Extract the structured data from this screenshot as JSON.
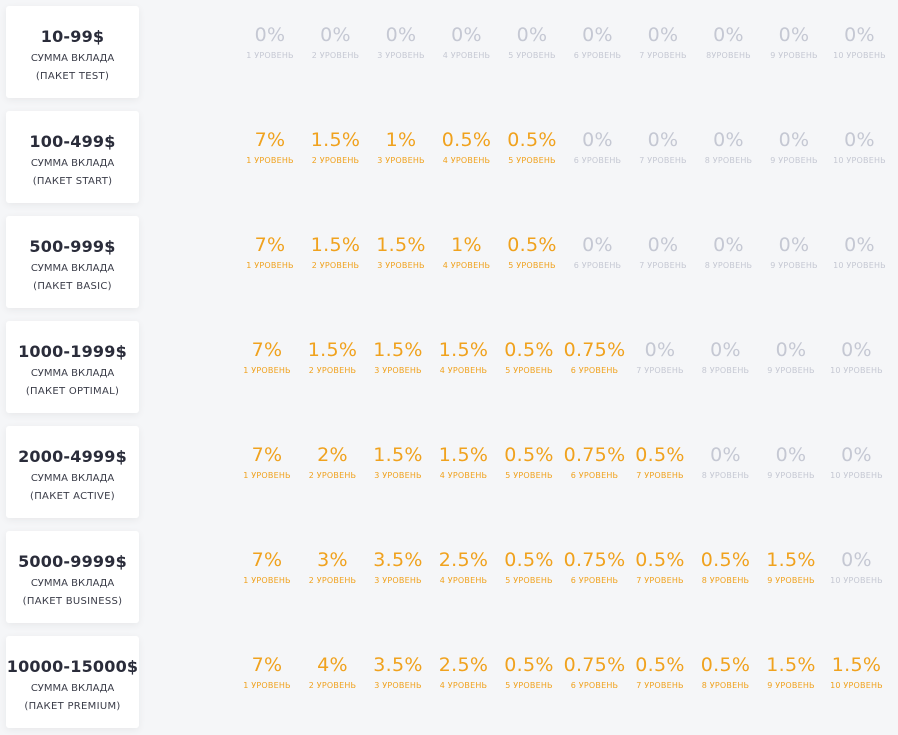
{
  "colors": {
    "active": "#f0a21e",
    "inactive": "#c5c8d3",
    "title": "#2a2c3a",
    "card_bg": "#ffffff",
    "page_bg": "#f5f6f8"
  },
  "packages": [
    {
      "range": "10-99$",
      "caption": "СУММА ВКЛАДА",
      "package": "(ПАКЕТ TEST)",
      "levels": [
        {
          "value": "0%",
          "label": "1 УРОВЕНЬ",
          "active": false
        },
        {
          "value": "0%",
          "label": "2 УРОВЕНЬ",
          "active": false
        },
        {
          "value": "0%",
          "label": "3 УРОВЕНЬ",
          "active": false
        },
        {
          "value": "0%",
          "label": "4 УРОВЕНЬ",
          "active": false
        },
        {
          "value": "0%",
          "label": "5 УРОВЕНЬ",
          "active": false
        },
        {
          "value": "0%",
          "label": "6 УРОВЕНЬ",
          "active": false
        },
        {
          "value": "0%",
          "label": "7 УРОВЕНЬ",
          "active": false
        },
        {
          "value": "0%",
          "label": "8УРОВЕНЬ",
          "active": false
        },
        {
          "value": "0%",
          "label": "9 УРОВЕНЬ",
          "active": false
        },
        {
          "value": "0%",
          "label": "10 УРОВЕНЬ",
          "active": false
        }
      ]
    },
    {
      "range": "100-499$",
      "caption": "СУММА ВКЛАДА",
      "package": "(ПАКЕТ START)",
      "levels": [
        {
          "value": "7%",
          "label": "1 УРОВЕНЬ",
          "active": true
        },
        {
          "value": "1.5%",
          "label": "2 УРОВЕНЬ",
          "active": true
        },
        {
          "value": "1%",
          "label": "3 УРОВЕНЬ",
          "active": true
        },
        {
          "value": "0.5%",
          "label": "4 УРОВЕНЬ",
          "active": true
        },
        {
          "value": "0.5%",
          "label": "5 УРОВЕНЬ",
          "active": true
        },
        {
          "value": "0%",
          "label": "6 УРОВЕНЬ",
          "active": false
        },
        {
          "value": "0%",
          "label": "7 УРОВЕНЬ",
          "active": false
        },
        {
          "value": "0%",
          "label": "8 УРОВЕНЬ",
          "active": false
        },
        {
          "value": "0%",
          "label": "9 УРОВЕНЬ",
          "active": false
        },
        {
          "value": "0%",
          "label": "10 УРОВЕНЬ",
          "active": false
        }
      ]
    },
    {
      "range": "500-999$",
      "caption": "СУММА ВКЛАДА",
      "package": "(ПАКЕТ BASIC)",
      "levels": [
        {
          "value": "7%",
          "label": "1 УРОВЕНЬ",
          "active": true
        },
        {
          "value": "1.5%",
          "label": "2 УРОВЕНЬ",
          "active": true
        },
        {
          "value": "1.5%",
          "label": "3 УРОВЕНЬ",
          "active": true
        },
        {
          "value": "1%",
          "label": "4 УРОВЕНЬ",
          "active": true
        },
        {
          "value": "0.5%",
          "label": "5 УРОВЕНЬ",
          "active": true
        },
        {
          "value": "0%",
          "label": "6 УРОВЕНЬ",
          "active": false
        },
        {
          "value": "0%",
          "label": "7 УРОВЕНЬ",
          "active": false
        },
        {
          "value": "0%",
          "label": "8 УРОВЕНЬ",
          "active": false
        },
        {
          "value": "0%",
          "label": "9 УРОВЕНЬ",
          "active": false
        },
        {
          "value": "0%",
          "label": "10 УРОВЕНЬ",
          "active": false
        }
      ]
    },
    {
      "range": "1000-1999$",
      "caption": "СУММА ВКЛАДА",
      "package": "(ПАКЕТ OPTIMAL)",
      "levels": [
        {
          "value": "7%",
          "label": "1 УРОВЕНЬ",
          "active": true
        },
        {
          "value": "1.5%",
          "label": "2 УРОВЕНЬ",
          "active": true
        },
        {
          "value": "1.5%",
          "label": "3 УРОВЕНЬ",
          "active": true
        },
        {
          "value": "1.5%",
          "label": "4 УРОВЕНЬ",
          "active": true
        },
        {
          "value": "0.5%",
          "label": "5 УРОВЕНЬ",
          "active": true
        },
        {
          "value": "0.75%",
          "label": "6 УРОВЕНЬ",
          "active": true
        },
        {
          "value": "0%",
          "label": "7 УРОВЕНЬ",
          "active": false
        },
        {
          "value": "0%",
          "label": "8 УРОВЕНЬ",
          "active": false
        },
        {
          "value": "0%",
          "label": "9 УРОВЕНЬ",
          "active": false
        },
        {
          "value": "0%",
          "label": "10 УРОВЕНЬ",
          "active": false
        }
      ]
    },
    {
      "range": "2000-4999$",
      "caption": "СУММА ВКЛАДА",
      "package": "(ПАКЕТ ACTIVE)",
      "levels": [
        {
          "value": "7%",
          "label": "1 УРОВЕНЬ",
          "active": true
        },
        {
          "value": "2%",
          "label": "2 УРОВЕНЬ",
          "active": true
        },
        {
          "value": "1.5%",
          "label": "3 УРОВЕНЬ",
          "active": true
        },
        {
          "value": "1.5%",
          "label": "4 УРОВЕНЬ",
          "active": true
        },
        {
          "value": "0.5%",
          "label": "5 УРОВЕНЬ",
          "active": true
        },
        {
          "value": "0.75%",
          "label": "6 УРОВЕНЬ",
          "active": true
        },
        {
          "value": "0.5%",
          "label": "7 УРОВЕНЬ",
          "active": true
        },
        {
          "value": "0%",
          "label": "8 УРОВЕНЬ",
          "active": false
        },
        {
          "value": "0%",
          "label": "9 УРОВЕНЬ",
          "active": false
        },
        {
          "value": "0%",
          "label": "10 УРОВЕНЬ",
          "active": false
        }
      ]
    },
    {
      "range": "5000-9999$",
      "caption": "СУММА ВКЛАДА",
      "package": "(ПАКЕТ BUSINESS)",
      "levels": [
        {
          "value": "7%",
          "label": "1 УРОВЕНЬ",
          "active": true
        },
        {
          "value": "3%",
          "label": "2 УРОВЕНЬ",
          "active": true
        },
        {
          "value": "3.5%",
          "label": "3 УРОВЕНЬ",
          "active": true
        },
        {
          "value": "2.5%",
          "label": "4 УРОВЕНЬ",
          "active": true
        },
        {
          "value": "0.5%",
          "label": "5 УРОВЕНЬ",
          "active": true
        },
        {
          "value": "0.75%",
          "label": "6 УРОВЕНЬ",
          "active": true
        },
        {
          "value": "0.5%",
          "label": "7 УРОВЕНЬ",
          "active": true
        },
        {
          "value": "0.5%",
          "label": "8 УРОВЕНЬ",
          "active": true
        },
        {
          "value": "1.5%",
          "label": "9 УРОВЕНЬ",
          "active": true
        },
        {
          "value": "0%",
          "label": "10 УРОВЕНЬ",
          "active": false
        }
      ]
    },
    {
      "range": "10000-15000$",
      "caption": "СУММА ВКЛАДА",
      "package": "(ПАКЕТ PREMIUM)",
      "levels": [
        {
          "value": "7%",
          "label": "1 УРОВЕНЬ",
          "active": true
        },
        {
          "value": "4%",
          "label": "2 УРОВЕНЬ",
          "active": true
        },
        {
          "value": "3.5%",
          "label": "3 УРОВЕНЬ",
          "active": true
        },
        {
          "value": "2.5%",
          "label": "4 УРОВЕНЬ",
          "active": true
        },
        {
          "value": "0.5%",
          "label": "5 УРОВЕНЬ",
          "active": true
        },
        {
          "value": "0.75%",
          "label": "6 УРОВЕНЬ",
          "active": true
        },
        {
          "value": "0.5%",
          "label": "7 УРОВЕНЬ",
          "active": true
        },
        {
          "value": "0.5%",
          "label": "8 УРОВЕНЬ",
          "active": true
        },
        {
          "value": "1.5%",
          "label": "9 УРОВЕНЬ",
          "active": true
        },
        {
          "value": "1.5%",
          "label": "10 УРОВЕНЬ",
          "active": true
        }
      ]
    }
  ]
}
